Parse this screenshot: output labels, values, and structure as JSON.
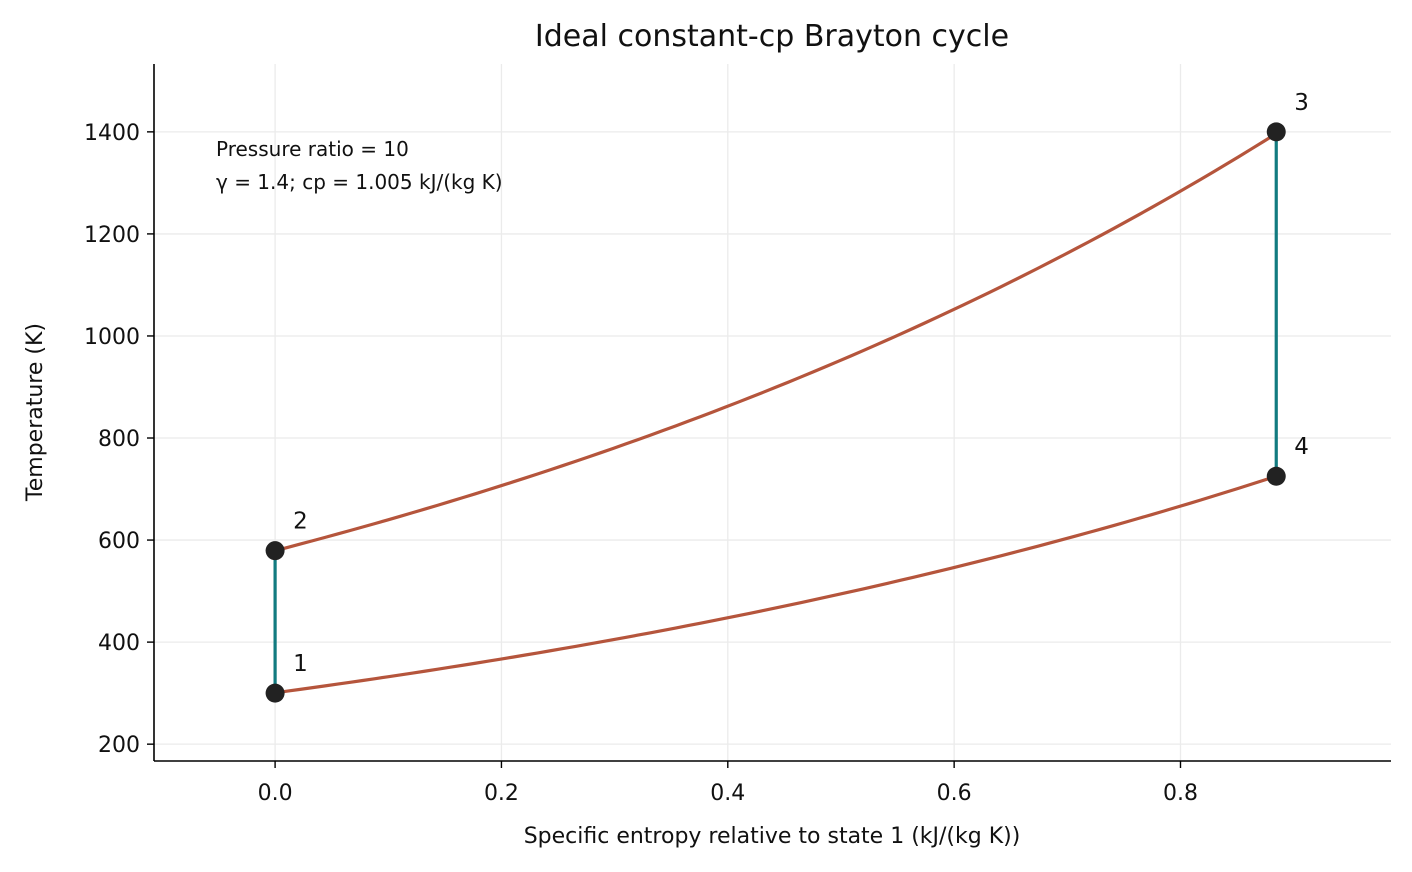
{
  "chart_data": {
    "type": "line",
    "title": "Ideal constant-cp Brayton cycle",
    "xlabel": "Specific entropy relative to state 1 (kJ/(kg K))",
    "ylabel": "Temperature (K)",
    "xlim": [
      -0.107,
      0.986
    ],
    "ylim": [
      167,
      1533
    ],
    "xticks": [
      0.0,
      0.2,
      0.4,
      0.6,
      0.8
    ],
    "xtick_labels": [
      "0.0",
      "0.2",
      "0.4",
      "0.6",
      "0.8"
    ],
    "yticks": [
      200,
      400,
      600,
      800,
      1000,
      1200,
      1400
    ],
    "ytick_labels": [
      "200",
      "400",
      "600",
      "800",
      "1000",
      "1200",
      "1400"
    ],
    "grid": true,
    "annotation": [
      "Pressure ratio = 10",
      "γ = 1.4; cp = 1.005 kJ/(kg K)"
    ],
    "states": [
      {
        "label": "1",
        "s": 0.0,
        "T": 300.0
      },
      {
        "label": "2",
        "s": 0.0,
        "T": 579.2
      },
      {
        "label": "3",
        "s": 0.8846,
        "T": 1400.0
      },
      {
        "label": "4",
        "s": 0.8846,
        "T": 725.1
      }
    ],
    "processes": [
      {
        "from": "1",
        "to": "2",
        "kind": "isentropic compression",
        "color": "#127b80"
      },
      {
        "from": "2",
        "to": "3",
        "kind": "constant-pressure heat addition",
        "color": "#b5553c"
      },
      {
        "from": "3",
        "to": "4",
        "kind": "isentropic expansion",
        "color": "#127b80"
      },
      {
        "from": "4",
        "to": "1",
        "kind": "constant-pressure heat rejection",
        "color": "#b5553c"
      }
    ],
    "cp": 1.005,
    "colors": {
      "isentropic": "#127b80",
      "isobaric": "#b5553c",
      "marker": "#222222",
      "grid": "#ebebeb"
    }
  }
}
